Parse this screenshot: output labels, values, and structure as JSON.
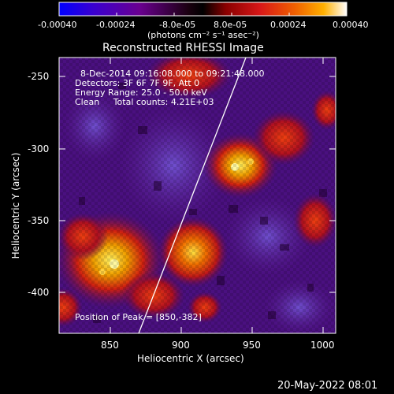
{
  "colorbar": {
    "ticks": [
      "-0.00040",
      "-0.00024",
      "-8.0e-05",
      "8.0e-05",
      "0.00024",
      "0.00040"
    ],
    "unit_label": "(photons cm⁻² s⁻¹ asec⁻²)"
  },
  "image": {
    "title": "Reconstructed RHESSI Image",
    "info_lines": [
      "8-Dec-2014 09:16:08.000 to 09:21:48.000",
      "Detectors: 3F 6F 7F 9F, Att 0",
      "Energy Range: 25.0 - 50.0 keV",
      "Clean     Total counts: 4.21E+03"
    ],
    "peak_text": "Position of Peak = [850,-382]",
    "xlabel": "Heliocentric X (arcsec)",
    "ylabel": "Heliocentric Y (arcsec)",
    "x_ticks": [
      "850",
      "900",
      "950",
      "1000"
    ],
    "y_ticks": [
      "-250",
      "-300",
      "-350",
      "-400"
    ],
    "date_stamp": "20-May-2022 08:01"
  },
  "colors": {
    "limb_line": "#ffffff",
    "background": "#000000"
  }
}
